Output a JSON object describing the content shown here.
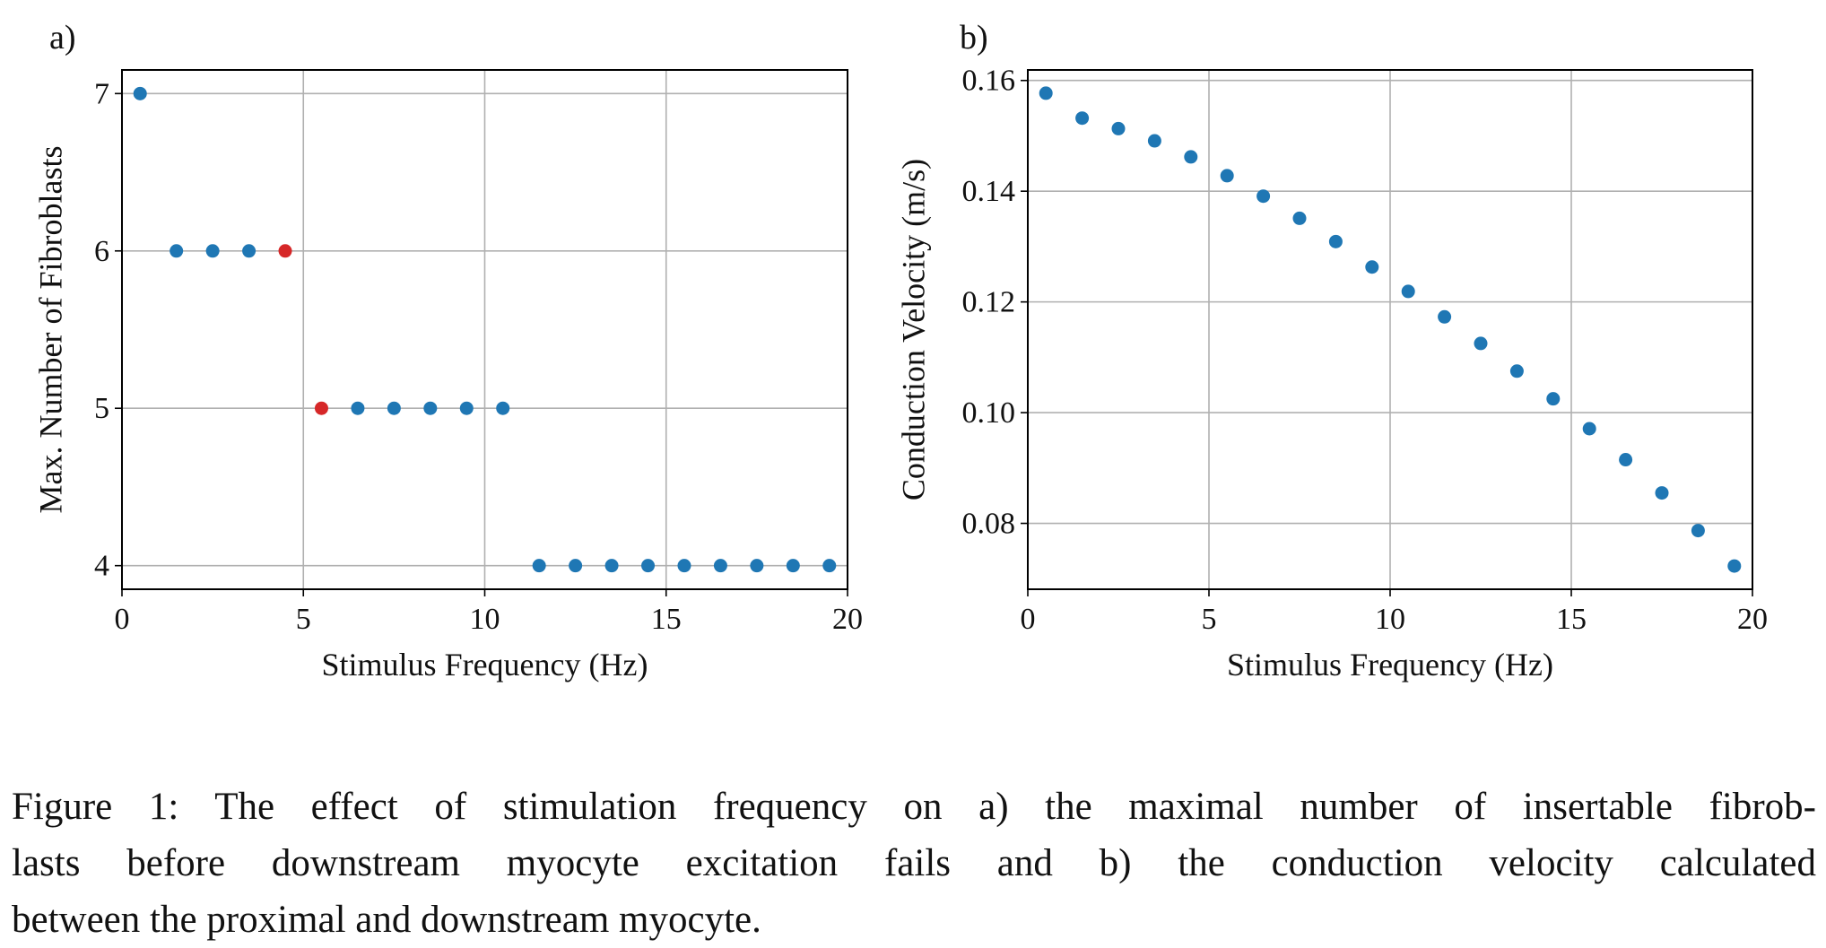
{
  "chart_data": [
    {
      "type": "scatter",
      "panel_label": "a)",
      "xlabel": "Stimulus Frequency (Hz)",
      "ylabel": "Max. Number of Fibroblasts",
      "xlim": [
        0,
        20
      ],
      "ylim": [
        3.85,
        7.15
      ],
      "xticks": [
        "0",
        "5",
        "10",
        "15",
        "20"
      ],
      "xtick_values": [
        0,
        5,
        10,
        15,
        20
      ],
      "yticks": [
        "4",
        "5",
        "6",
        "7"
      ],
      "ytick_values": [
        4,
        5,
        6,
        7
      ],
      "grid": true,
      "x": [
        0.5,
        1.5,
        2.5,
        3.5,
        4.5,
        5.5,
        6.5,
        7.5,
        8.5,
        9.5,
        10.5,
        11.5,
        12.5,
        13.5,
        14.5,
        15.5,
        16.5,
        17.5,
        18.5,
        19.5
      ],
      "y": [
        7,
        6,
        6,
        6,
        6,
        5,
        5,
        5,
        5,
        5,
        5,
        4,
        4,
        4,
        4,
        4,
        4,
        4,
        4,
        4
      ],
      "highlighted_indices": [
        4,
        5
      ],
      "colors": {
        "default": "#1f77b4",
        "highlight": "#d62728"
      }
    },
    {
      "type": "scatter",
      "panel_label": "b)",
      "xlabel": "Stimulus Frequency (Hz)",
      "ylabel": "Conduction Velocity (m/s)",
      "xlim": [
        0,
        20
      ],
      "ylim": [
        0.0681,
        0.1619
      ],
      "xticks": [
        "0",
        "5",
        "10",
        "15",
        "20"
      ],
      "xtick_values": [
        0,
        5,
        10,
        15,
        20
      ],
      "yticks": [
        "0.08",
        "0.10",
        "0.12",
        "0.14",
        "0.16"
      ],
      "ytick_values": [
        0.08,
        0.1,
        0.12,
        0.14,
        0.16
      ],
      "grid": true,
      "x": [
        0.5,
        1.5,
        2.5,
        3.5,
        4.5,
        5.5,
        6.5,
        7.5,
        8.5,
        9.5,
        10.5,
        11.5,
        12.5,
        13.5,
        14.5,
        15.5,
        16.5,
        17.5,
        18.5,
        19.5
      ],
      "y": [
        0.1577,
        0.1532,
        0.1513,
        0.1491,
        0.1462,
        0.1428,
        0.1391,
        0.1351,
        0.1309,
        0.1263,
        0.1219,
        0.1173,
        0.1125,
        0.1075,
        0.1025,
        0.0971,
        0.0915,
        0.0855,
        0.0787,
        0.0723
      ],
      "highlighted_indices": [],
      "colors": {
        "default": "#1f77b4",
        "highlight": "#d62728"
      }
    }
  ],
  "caption": {
    "lines": [
      "Figure 1: The effect of stimulation frequency on a) the maximal number of insertable fibrob-",
      "lasts before downstream myocyte excitation fails and b) the conduction velocity calculated",
      "between the proximal and downstream myocyte."
    ]
  }
}
